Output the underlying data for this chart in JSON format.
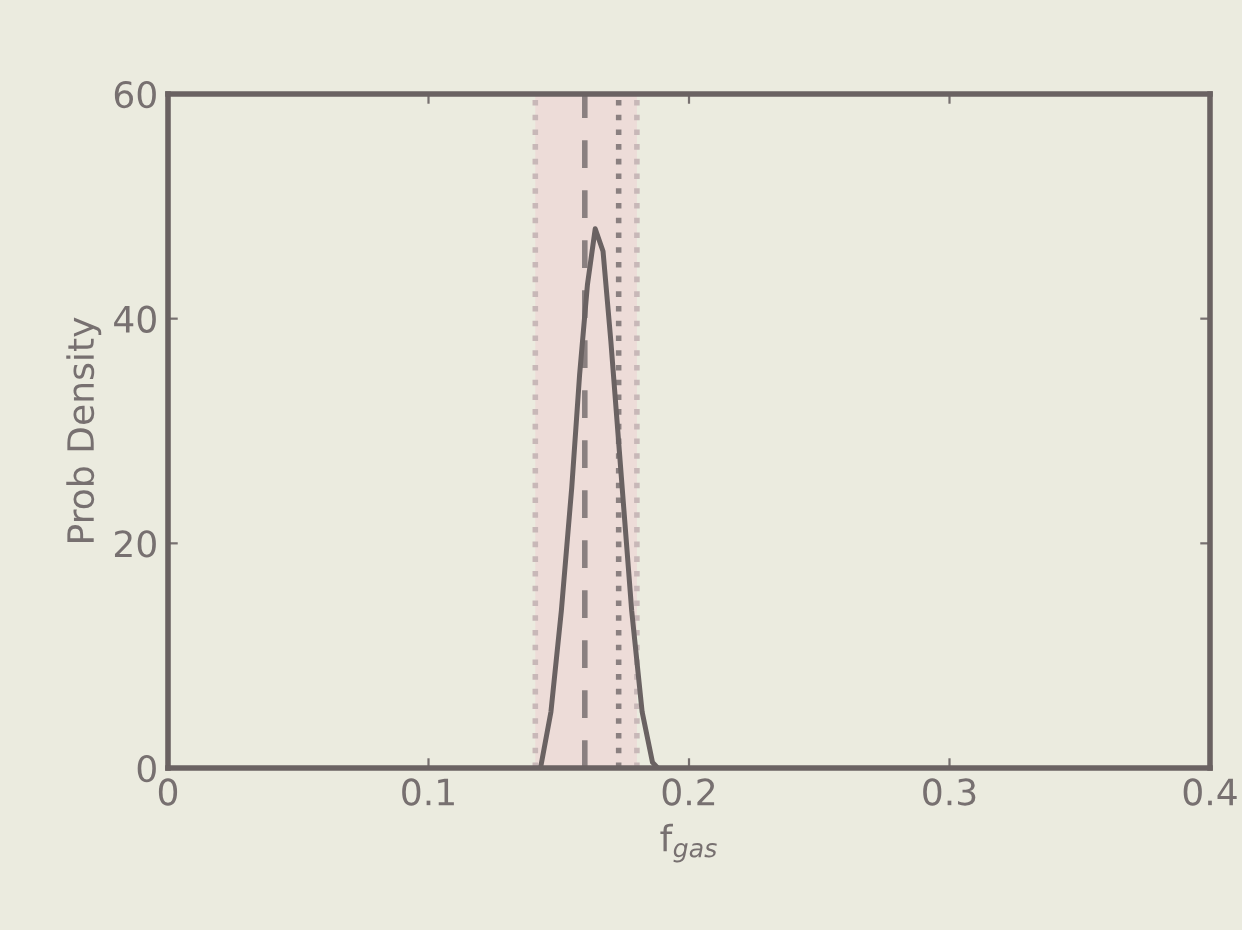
{
  "chart_data": {
    "type": "line",
    "xlabel": "f$_{gas}$",
    "ylabel": "Prob Density",
    "x": [
      0.143,
      0.147,
      0.151,
      0.155,
      0.158,
      0.161,
      0.164,
      0.167,
      0.17,
      0.174,
      0.178,
      0.182,
      0.186,
      0.188
    ],
    "series": [
      {
        "color": "#6a6262",
        "values": [
          0,
          5,
          14,
          25,
          35,
          43,
          48,
          46,
          38,
          26,
          14,
          5,
          0.5,
          0
        ]
      }
    ],
    "xlim": [
      0,
      0.4
    ],
    "xticks": [
      0,
      0.1,
      0.2,
      0.3,
      0.4
    ],
    "ylim": [
      0,
      60
    ],
    "yticks": [
      0,
      20,
      40,
      60
    ],
    "grid": false,
    "legend": false,
    "line_style": "solid",
    "marker": "none",
    "ref_lines": [
      {
        "axis": "x",
        "value": 0.16,
        "color": "#8a8080",
        "line_style": "dashed"
      },
      {
        "axis": "x",
        "value": 0.173,
        "color": "#8a8080",
        "line_style": "dotted"
      },
      {
        "axis": "x",
        "value": 0.141,
        "color": "#c8b8b8",
        "line_style": "dotted"
      },
      {
        "axis": "x",
        "value": 0.18,
        "color": "#c8b8b8",
        "line_style": "dotted"
      }
    ],
    "bands": [
      {
        "axis": "x",
        "from": 0.141,
        "to": 0.18,
        "color": "#eddcd8"
      }
    ]
  }
}
